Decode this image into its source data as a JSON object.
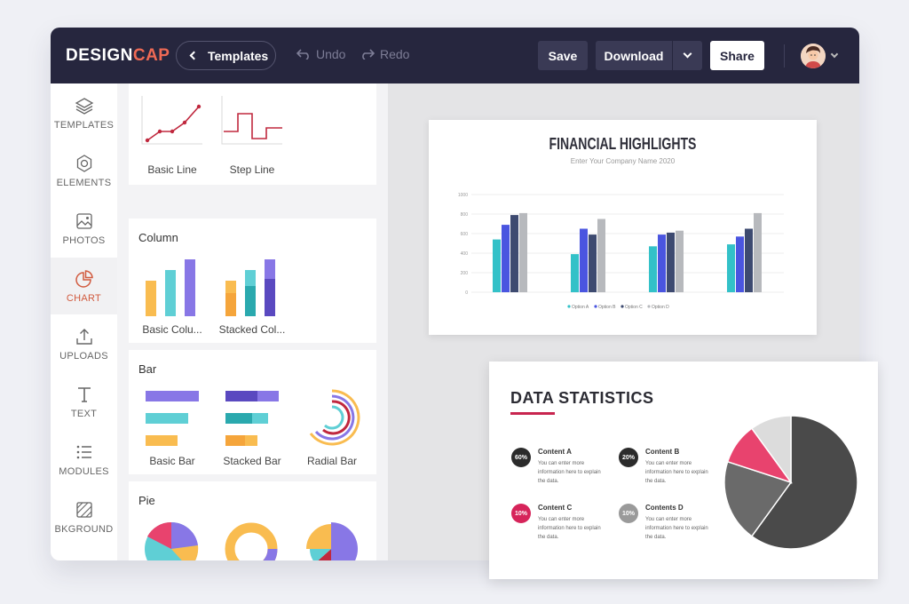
{
  "topbar": {
    "logo_main": "DESIGN",
    "logo_accent": "CAP",
    "templates_label": "Templates",
    "undo_label": "Undo",
    "redo_label": "Redo",
    "save_label": "Save",
    "download_label": "Download",
    "share_label": "Share"
  },
  "leftnav": {
    "items": [
      {
        "label": "TEMPLATES",
        "icon": "layers-icon"
      },
      {
        "label": "ELEMENTS",
        "icon": "elements-icon"
      },
      {
        "label": "PHOTOS",
        "icon": "photo-icon"
      },
      {
        "label": "CHART",
        "icon": "pie-chart-icon",
        "active": true
      },
      {
        "label": "UPLOADS",
        "icon": "upload-icon"
      },
      {
        "label": "TEXT",
        "icon": "text-icon"
      },
      {
        "label": "MODULES",
        "icon": "list-icon"
      },
      {
        "label": "BKGROUND",
        "icon": "background-icon"
      }
    ]
  },
  "panel": {
    "line": {
      "items": [
        "Basic Line",
        "Step Line"
      ]
    },
    "column": {
      "title": "Column",
      "items": [
        "Basic Colu...",
        "Stacked Col..."
      ]
    },
    "bar": {
      "title": "Bar",
      "items": [
        "Basic Bar",
        "Stacked Bar",
        "Radial Bar"
      ]
    },
    "pie": {
      "title": "Pie"
    }
  },
  "slide1": {
    "title": "FINANCIAL HIGHLIGHTS",
    "subtitle": "Enter Your Company Name 2020"
  },
  "slide2": {
    "title": "DATA STATISTICS",
    "stats": [
      {
        "badge": "60%",
        "title": "Content A",
        "desc": "You can enter more information here to explain the data.",
        "color": "#2b2b2b"
      },
      {
        "badge": "20%",
        "title": "Content B",
        "desc": "You can enter more information here to explain the data.",
        "color": "#2b2b2b"
      },
      {
        "badge": "10%",
        "title": "Content C",
        "desc": "You can enter more information here to explain the data.",
        "color": "#d6245a"
      },
      {
        "badge": "10%",
        "title": "Contents D",
        "desc": "You can enter more information here to explain the data.",
        "color": "#9a9a9a"
      }
    ]
  },
  "chart_data": [
    {
      "type": "bar",
      "title": "FINANCIAL HIGHLIGHTS",
      "subtitle": "Enter Your Company Name 2020",
      "categories": [
        "",
        "",
        "",
        ""
      ],
      "ylim": [
        0,
        1000
      ],
      "yticks": [
        0,
        200,
        400,
        600,
        800,
        1000
      ],
      "grid": true,
      "legend_position": "bottom",
      "series": [
        {
          "name": "Option A",
          "color": "#33c1c8",
          "values": [
            540,
            390,
            470,
            490
          ]
        },
        {
          "name": "Option B",
          "color": "#4a55e0",
          "values": [
            690,
            650,
            590,
            570
          ]
        },
        {
          "name": "Option C",
          "color": "#3d4a70",
          "values": [
            790,
            590,
            610,
            650
          ]
        },
        {
          "name": "Option D",
          "color": "#b7b9bd",
          "values": [
            810,
            750,
            630,
            810
          ]
        }
      ]
    },
    {
      "type": "pie",
      "labels": [
        "Content A",
        "Content B",
        "Content C",
        "Contents D"
      ],
      "values": [
        60,
        20,
        10,
        10
      ],
      "colors": [
        "#4a4a4a",
        "#6a6a6a",
        "#e8436e",
        "#dcdcdc"
      ]
    }
  ]
}
